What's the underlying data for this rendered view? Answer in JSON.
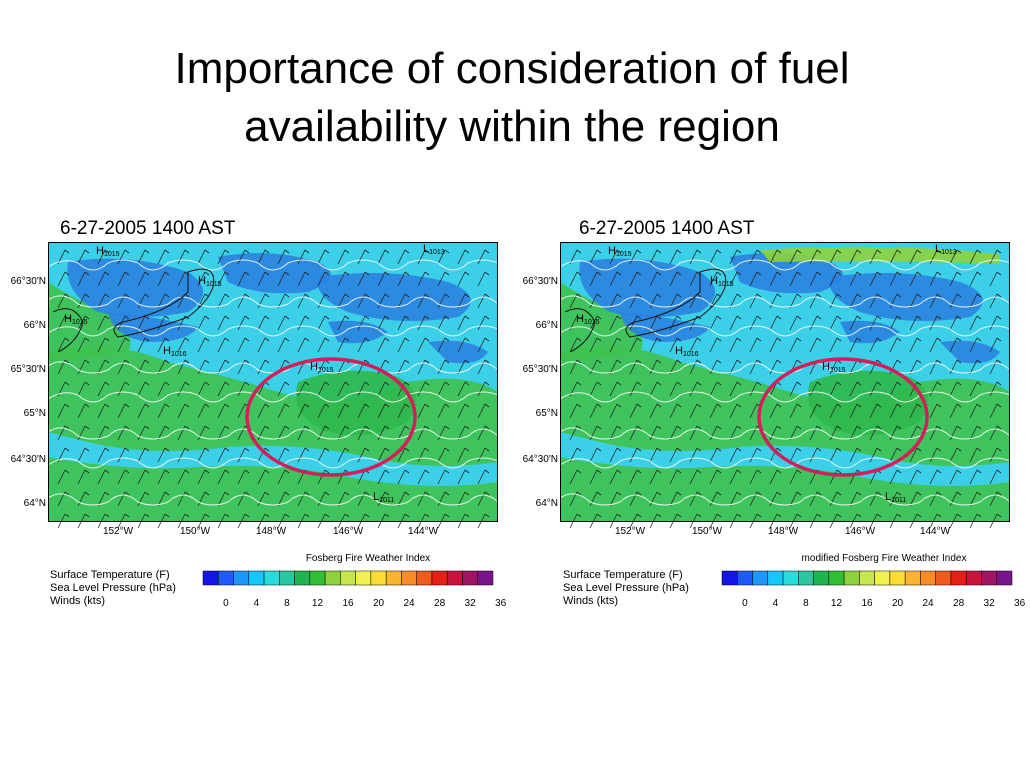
{
  "slide": {
    "title_line1": "Importance of consideration of fuel",
    "title_line2": "availability within the region"
  },
  "panels": [
    {
      "timestamp": "6-27-2005 1400 AST",
      "colorbar_title": "Fosberg Fire Weather Index",
      "lat_labels": [
        "66°30'N",
        "66°N",
        "65°30'N",
        "65°N",
        "64°30'N",
        "64°N"
      ],
      "lon_labels": [
        "152°W",
        "150°W",
        "148°W",
        "146°W",
        "144°W"
      ],
      "pressure_labels": [
        "H1015",
        "H1015",
        "H1015",
        "H1016",
        "H1015",
        "L1013",
        "L1011"
      ],
      "legend": {
        "temp": "Surface Temperature   (F)",
        "pressure": "Sea Level Pressure   (hPa)",
        "winds": "Winds   (kts)"
      },
      "colorbar_ticks": [
        "0",
        "4",
        "8",
        "12",
        "16",
        "20",
        "24",
        "28",
        "32",
        "36"
      ]
    },
    {
      "timestamp": "6-27-2005 1400 AST",
      "colorbar_title": "modified Fosberg Fire Weather Index",
      "lat_labels": [
        "66°30'N",
        "66°N",
        "65°30'N",
        "65°N",
        "64°30'N",
        "64°N"
      ],
      "lon_labels": [
        "152°W",
        "150°W",
        "148°W",
        "146°W",
        "144°W"
      ],
      "pressure_labels": [
        "H1015",
        "H1015",
        "H1015",
        "H1016",
        "H1015",
        "L1013",
        "L1011"
      ],
      "legend": {
        "temp": "Surface Temperature   (F)",
        "pressure": "Sea Level Pressure   (hPa)",
        "winds": "Winds   (kts)"
      },
      "colorbar_ticks": [
        "0",
        "4",
        "8",
        "12",
        "16",
        "20",
        "24",
        "28",
        "32",
        "36"
      ]
    }
  ],
  "colors": {
    "colorbar": [
      "#1414e6",
      "#1e5aff",
      "#1e96ff",
      "#14c8ff",
      "#28dcdc",
      "#28c8a0",
      "#1eb450",
      "#32be32",
      "#8cd23c",
      "#c8e650",
      "#f0f050",
      "#fadc32",
      "#fab432",
      "#fa8c28",
      "#f05a1e",
      "#e61e14",
      "#c8143c",
      "#a01464",
      "#78148c"
    ],
    "highlight_circle": "#d21e5a"
  }
}
